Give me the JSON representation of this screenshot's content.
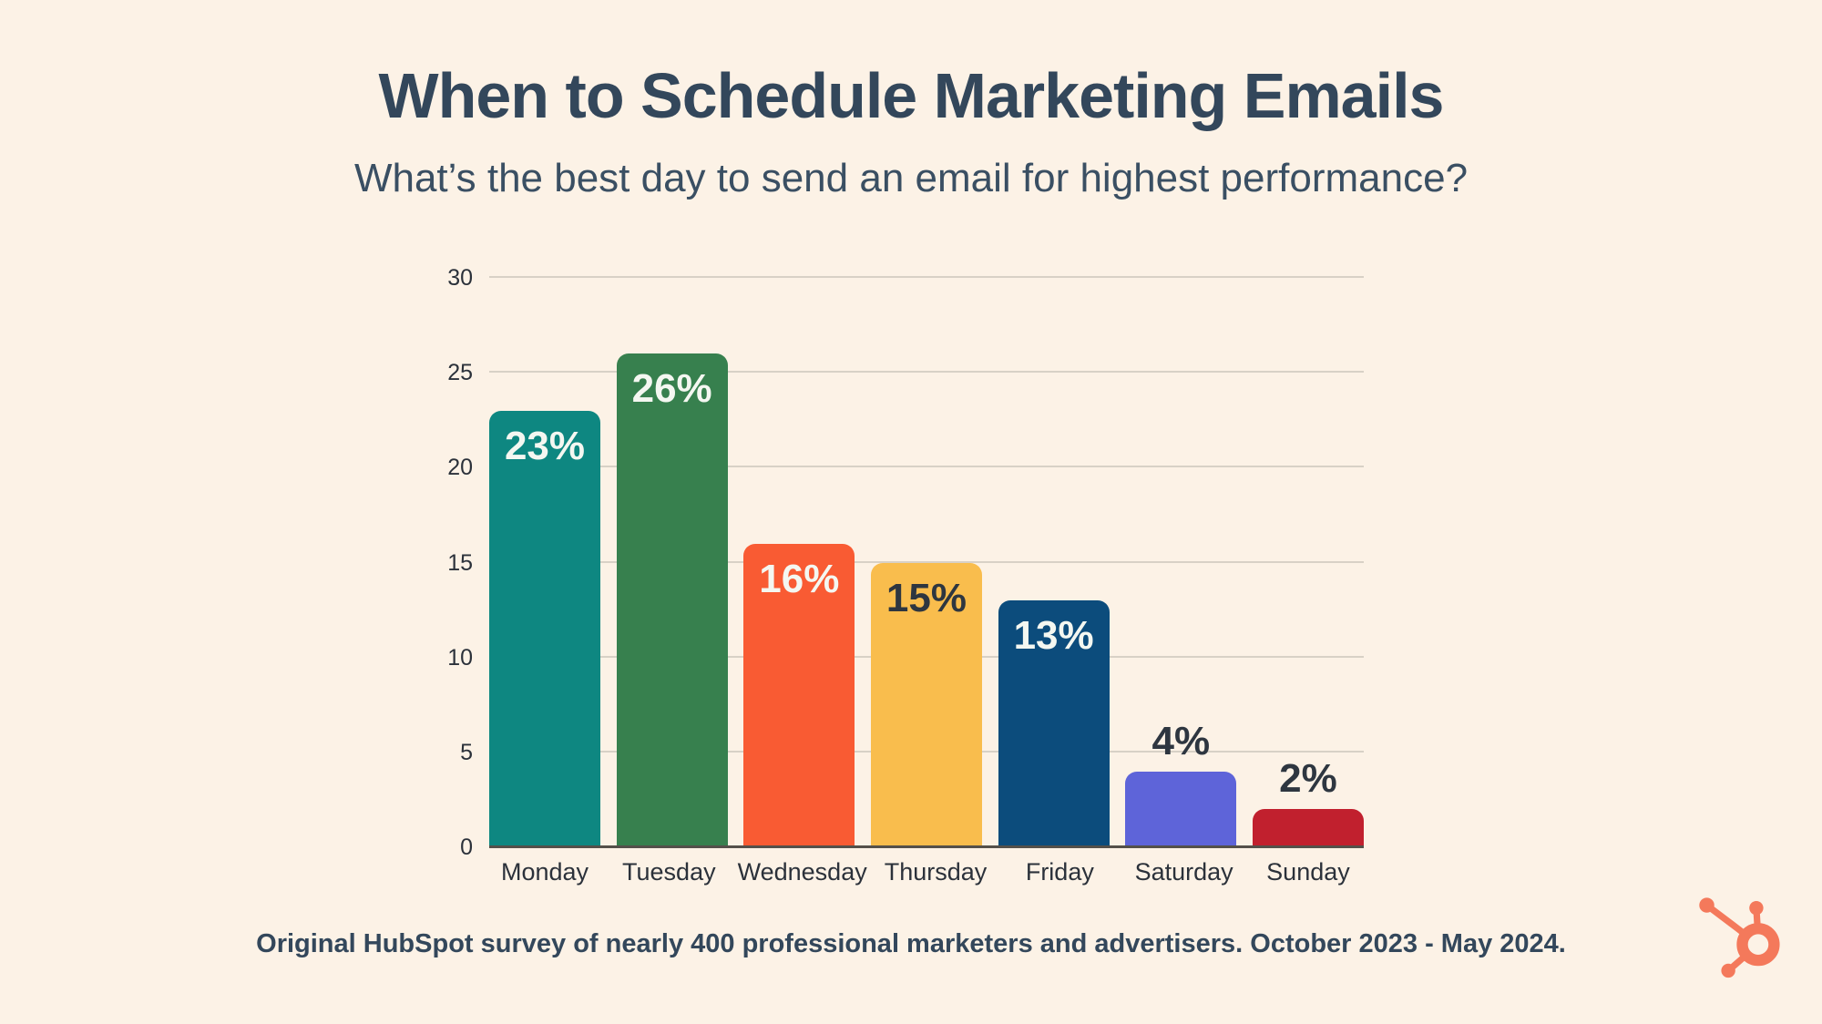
{
  "header": {
    "title": "When to Schedule Marketing Emails",
    "subtitle": "What’s the best day to send an email for highest performance?"
  },
  "chart_data": {
    "type": "bar",
    "title": "When to Schedule Marketing Emails",
    "categories": [
      "Monday",
      "Tuesday",
      "Wednesday",
      "Thursday",
      "Friday",
      "Saturday",
      "Sunday"
    ],
    "values": [
      23,
      26,
      16,
      15,
      13,
      4,
      2
    ],
    "data_labels": [
      "23%",
      "26%",
      "16%",
      "15%",
      "13%",
      "4%",
      "2%"
    ],
    "bar_colors": [
      "#0e8781",
      "#37804e",
      "#f95b33",
      "#f9bd4d",
      "#0c4c7c",
      "#5e64d9",
      "#c1202e"
    ],
    "label_colors": [
      "#f4f7f1",
      "#f4f7f1",
      "#f4f7f1",
      "#2e3640",
      "#f4f7f1",
      "#2e3640",
      "#2e3640"
    ],
    "label_placements": [
      "inside",
      "inside",
      "inside",
      "inside",
      "inside",
      "above",
      "above"
    ],
    "xlabel": "",
    "ylabel": "",
    "ylim": [
      0,
      30
    ],
    "yticks": [
      0,
      5,
      10,
      15,
      20,
      25,
      30
    ],
    "grid": true,
    "legend_position": "none"
  },
  "footer": {
    "note": "Original HubSpot survey of nearly 400 professional marketers and advertisers. October 2023 - May 2024."
  },
  "branding": {
    "logo_name": "hubspot-sprocket",
    "logo_color": "#f4795b"
  },
  "theme": {
    "background": "#fcf2e6",
    "heading_color": "#33475b",
    "gridline_color": "#d8d1c6",
    "axis_line_color": "#54504a",
    "tick_color": "#2b313a"
  }
}
